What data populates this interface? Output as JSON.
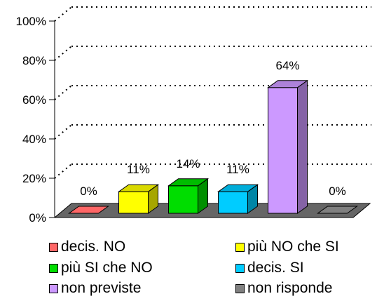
{
  "chart_data": {
    "type": "bar",
    "categories": [
      "decis. NO",
      "più NO che SI",
      "più SI che NO",
      "decis. SI",
      "non previste",
      "non risponde"
    ],
    "values": [
      0,
      11,
      14,
      11,
      64,
      0
    ],
    "data_labels": [
      "0%",
      "11%",
      "14%",
      "11%",
      "64%",
      "0%"
    ],
    "colors": [
      "#ff6666",
      "#ffff00",
      "#00dd00",
      "#00ccff",
      "#cc99ff",
      "#808080"
    ],
    "y_ticks": [
      "0%",
      "20%",
      "40%",
      "60%",
      "80%",
      "100%"
    ],
    "ylim": [
      0,
      100
    ],
    "grid": true,
    "legend_position": "bottom",
    "three_d": true
  },
  "legend": {
    "items": [
      {
        "label": "decis. NO",
        "color": "#ff6666"
      },
      {
        "label": "più NO che SI",
        "color": "#ffff00"
      },
      {
        "label": "più SI che NO",
        "color": "#00dd00"
      },
      {
        "label": "decis. SI",
        "color": "#00ccff"
      },
      {
        "label": "non previste",
        "color": "#cc99ff"
      },
      {
        "label": "non risponde",
        "color": "#808080"
      }
    ]
  }
}
